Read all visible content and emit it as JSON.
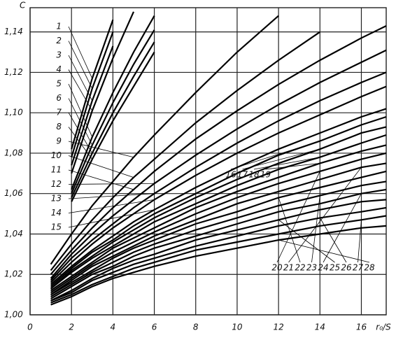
{
  "chart_data": {
    "type": "line",
    "x_label": "r₀/S",
    "y_label": "C",
    "x": [
      1,
      2,
      3,
      4,
      5,
      6,
      8,
      10,
      12,
      14,
      16,
      17.2
    ],
    "xlim": [
      0,
      17.2
    ],
    "xticks": [
      0,
      2,
      4,
      6,
      8,
      10,
      12,
      14,
      16
    ],
    "ylim": [
      1.0,
      1.152
    ],
    "yticks": [
      {
        "value": 1.0,
        "label": "1,00"
      },
      {
        "value": 1.02,
        "label": "1,02"
      },
      {
        "value": 1.04,
        "label": "1,04"
      },
      {
        "value": 1.06,
        "label": "1,06"
      },
      {
        "value": 1.08,
        "label": "1,08"
      },
      {
        "value": 1.1,
        "label": "1,10"
      },
      {
        "value": 1.12,
        "label": "1,12"
      },
      {
        "value": 1.14,
        "label": "1,14"
      }
    ],
    "grid": true,
    "color": "#000000",
    "series": [
      {
        "name": "1",
        "values": [
          null,
          1.082,
          1.117,
          1.146,
          null,
          null,
          null,
          null,
          null,
          null,
          null,
          null
        ]
      },
      {
        "name": "2",
        "values": [
          null,
          1.078,
          1.112,
          1.14,
          null,
          null,
          null,
          null,
          null,
          null,
          null,
          null
        ]
      },
      {
        "name": "3",
        "values": [
          null,
          1.074,
          1.106,
          1.133,
          null,
          null,
          null,
          null,
          null,
          null,
          null,
          null
        ]
      },
      {
        "name": "4",
        "values": [
          null,
          1.07,
          1.101,
          1.127,
          1.15,
          null,
          null,
          null,
          null,
          null,
          null,
          null
        ]
      },
      {
        "name": "5",
        "values": [
          null,
          1.062,
          1.088,
          1.11,
          1.13,
          1.148,
          null,
          null,
          null,
          null,
          null,
          null
        ]
      },
      {
        "name": "6",
        "values": [
          null,
          1.06,
          1.084,
          1.105,
          1.124,
          1.141,
          null,
          null,
          null,
          null,
          null,
          null
        ]
      },
      {
        "name": "7",
        "values": [
          null,
          1.058,
          1.08,
          1.1,
          1.118,
          1.135,
          null,
          null,
          null,
          null,
          null,
          null
        ]
      },
      {
        "name": "8",
        "values": [
          null,
          1.056,
          1.077,
          1.096,
          1.113,
          1.13,
          null,
          null,
          null,
          null,
          null,
          null
        ]
      },
      {
        "name": "9",
        "values": [
          1.025,
          1.04,
          1.054,
          1.066,
          1.078,
          1.089,
          1.11,
          1.13,
          1.148,
          null,
          null,
          null
        ]
      },
      {
        "name": "10",
        "values": [
          1.022,
          1.035,
          1.047,
          1.058,
          1.068,
          1.077,
          1.095,
          1.111,
          1.126,
          1.14,
          null,
          null
        ]
      },
      {
        "name": "11",
        "values": [
          1.02,
          1.032,
          1.043,
          1.053,
          1.062,
          1.071,
          1.087,
          1.101,
          1.114,
          1.126,
          1.137,
          1.143
        ]
      },
      {
        "name": "12",
        "values": [
          1.018,
          1.03,
          1.04,
          1.049,
          1.057,
          1.065,
          1.079,
          1.092,
          1.104,
          1.115,
          1.125,
          1.131
        ]
      },
      {
        "name": "13",
        "values": [
          1.017,
          1.028,
          1.037,
          1.045,
          1.053,
          1.06,
          1.073,
          1.085,
          1.096,
          1.106,
          1.115,
          1.12
        ]
      },
      {
        "name": "14",
        "values": [
          1.016,
          1.026,
          1.035,
          1.043,
          1.05,
          1.057,
          1.069,
          1.08,
          1.09,
          1.099,
          1.108,
          1.113
        ]
      },
      {
        "name": "15",
        "values": [
          1.015,
          1.024,
          1.032,
          1.039,
          1.046,
          1.052,
          1.063,
          1.073,
          1.082,
          1.09,
          1.098,
          1.102
        ]
      },
      {
        "name": "16",
        "values": [
          1.014,
          1.023,
          1.031,
          1.037,
          1.044,
          1.05,
          1.06,
          1.07,
          1.079,
          1.086,
          1.094,
          1.098
        ]
      },
      {
        "name": "17",
        "values": [
          1.013,
          1.022,
          1.029,
          1.036,
          1.042,
          1.048,
          1.058,
          1.067,
          1.075,
          1.082,
          1.09,
          1.093
        ]
      },
      {
        "name": "18",
        "values": [
          1.013,
          1.021,
          1.028,
          1.034,
          1.04,
          1.046,
          1.055,
          1.064,
          1.072,
          1.078,
          1.085,
          1.089
        ]
      },
      {
        "name": "19",
        "values": [
          1.012,
          1.019,
          1.026,
          1.033,
          1.038,
          1.043,
          1.053,
          1.061,
          1.068,
          1.075,
          1.081,
          1.084
        ]
      },
      {
        "name": "20",
        "values": [
          1.011,
          1.018,
          1.025,
          1.031,
          1.036,
          1.041,
          1.05,
          1.058,
          1.065,
          1.071,
          1.077,
          1.08
        ]
      },
      {
        "name": "21",
        "values": [
          1.01,
          1.017,
          1.024,
          1.029,
          1.034,
          1.039,
          1.047,
          1.055,
          1.061,
          1.067,
          1.073,
          1.075
        ]
      },
      {
        "name": "22",
        "values": [
          1.01,
          1.016,
          1.022,
          1.028,
          1.033,
          1.037,
          1.045,
          1.051,
          1.058,
          1.063,
          1.068,
          1.071
        ]
      },
      {
        "name": "23",
        "values": [
          1.009,
          1.015,
          1.021,
          1.026,
          1.031,
          1.035,
          1.042,
          1.048,
          1.054,
          1.059,
          1.064,
          1.066
        ]
      },
      {
        "name": "24",
        "values": [
          1.008,
          1.014,
          1.02,
          1.024,
          1.029,
          1.033,
          1.039,
          1.045,
          1.051,
          1.055,
          1.06,
          1.062
        ]
      },
      {
        "name": "25",
        "values": [
          1.007,
          1.012,
          1.018,
          1.023,
          1.027,
          1.03,
          1.037,
          1.042,
          1.047,
          1.052,
          1.056,
          1.057
        ]
      },
      {
        "name": "26",
        "values": [
          1.007,
          1.011,
          1.017,
          1.021,
          1.025,
          1.028,
          1.034,
          1.039,
          1.044,
          1.048,
          1.051,
          1.053
        ]
      },
      {
        "name": "27",
        "values": [
          1.006,
          1.01,
          1.015,
          1.019,
          1.023,
          1.026,
          1.032,
          1.036,
          1.04,
          1.044,
          1.047,
          1.049
        ]
      },
      {
        "name": "28",
        "values": [
          1.005,
          1.009,
          1.014,
          1.018,
          1.021,
          1.024,
          1.029,
          1.033,
          1.037,
          1.04,
          1.043,
          1.044
        ]
      }
    ]
  }
}
